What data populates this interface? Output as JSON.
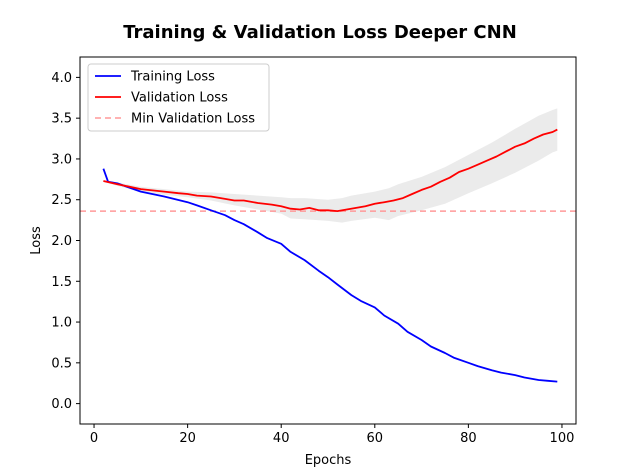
{
  "chart_data": {
    "type": "line",
    "title": "Training & Validation Loss Deeper CNN",
    "xlabel": "Epochs",
    "ylabel": "Loss",
    "xlim": [
      -3,
      103
    ],
    "ylim": [
      -0.25,
      4.25
    ],
    "xticks": [
      0,
      20,
      40,
      60,
      80,
      100
    ],
    "yticks": [
      0.0,
      0.5,
      1.0,
      1.5,
      2.0,
      2.5,
      3.0,
      3.5,
      4.0
    ],
    "grid": false,
    "legend_position": "top-left",
    "legend": {
      "training": "Training Loss",
      "validation": "Validation Loss",
      "min_validation": "Min Validation Loss"
    },
    "series": [
      {
        "key": "training",
        "name": "Training Loss",
        "color": "#0000ff",
        "x": [
          2,
          3,
          5,
          10,
          15,
          20,
          22,
          25,
          28,
          30,
          32,
          35,
          37,
          40,
          42,
          45,
          48,
          50,
          52,
          55,
          57,
          60,
          62,
          65,
          67,
          70,
          72,
          75,
          77,
          80,
          82,
          85,
          87,
          90,
          92,
          95,
          97,
          99
        ],
        "y": [
          2.88,
          2.72,
          2.7,
          2.6,
          2.54,
          2.47,
          2.43,
          2.37,
          2.31,
          2.25,
          2.2,
          2.1,
          2.03,
          1.96,
          1.86,
          1.76,
          1.63,
          1.55,
          1.46,
          1.33,
          1.26,
          1.18,
          1.08,
          0.98,
          0.88,
          0.78,
          0.7,
          0.62,
          0.56,
          0.5,
          0.46,
          0.41,
          0.38,
          0.35,
          0.32,
          0.29,
          0.28,
          0.27
        ]
      },
      {
        "key": "validation",
        "name": "Validation Loss",
        "color": "#ff0000",
        "x": [
          2,
          5,
          10,
          15,
          18,
          20,
          22,
          25,
          28,
          30,
          32,
          35,
          38,
          40,
          42,
          44,
          46,
          48,
          50,
          52,
          54,
          56,
          58,
          60,
          62,
          64,
          66,
          68,
          70,
          72,
          74,
          76,
          78,
          80,
          82,
          84,
          86,
          88,
          90,
          92,
          94,
          96,
          98,
          99
        ],
        "y": [
          2.73,
          2.69,
          2.63,
          2.6,
          2.58,
          2.57,
          2.55,
          2.54,
          2.51,
          2.49,
          2.49,
          2.46,
          2.44,
          2.42,
          2.39,
          2.38,
          2.4,
          2.37,
          2.37,
          2.36,
          2.38,
          2.4,
          2.42,
          2.45,
          2.47,
          2.49,
          2.52,
          2.57,
          2.62,
          2.66,
          2.72,
          2.77,
          2.84,
          2.88,
          2.93,
          2.98,
          3.03,
          3.09,
          3.15,
          3.19,
          3.25,
          3.3,
          3.33,
          3.36
        ]
      }
    ],
    "band": {
      "color": "#cccccc",
      "x": [
        2,
        5,
        10,
        15,
        20,
        25,
        30,
        35,
        40,
        42,
        45,
        50,
        53,
        55,
        60,
        63,
        65,
        70,
        75,
        80,
        85,
        90,
        95,
        98,
        99
      ],
      "upper": [
        2.74,
        2.71,
        2.66,
        2.63,
        2.6,
        2.59,
        2.57,
        2.55,
        2.53,
        2.52,
        2.52,
        2.5,
        2.52,
        2.55,
        2.6,
        2.64,
        2.69,
        2.78,
        2.9,
        3.05,
        3.2,
        3.37,
        3.53,
        3.6,
        3.62
      ],
      "lower": [
        2.72,
        2.67,
        2.6,
        2.56,
        2.53,
        2.49,
        2.43,
        2.38,
        2.33,
        2.27,
        2.26,
        2.24,
        2.22,
        2.24,
        2.28,
        2.25,
        2.3,
        2.37,
        2.45,
        2.58,
        2.7,
        2.83,
        2.98,
        3.08,
        3.1
      ]
    },
    "reference_line": {
      "key": "min_validation",
      "name": "Min Validation Loss",
      "y": 2.36,
      "color": "#ff9999",
      "style": "dashed"
    }
  }
}
